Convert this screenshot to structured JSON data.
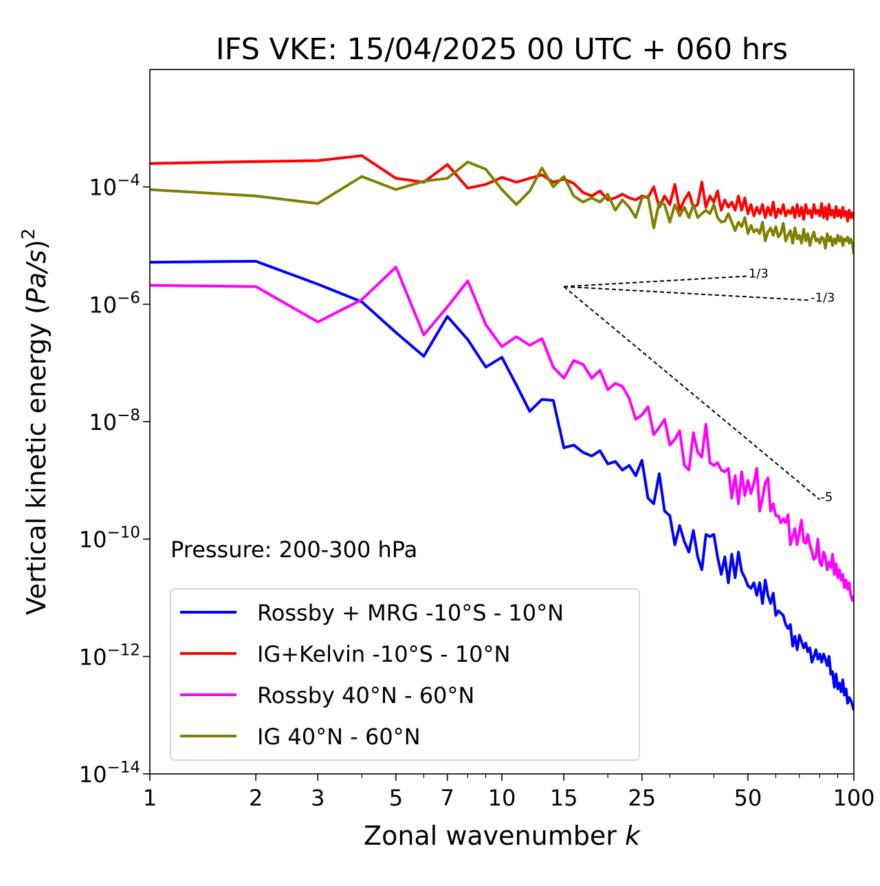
{
  "chart_data": {
    "type": "line",
    "title": "IFS VKE: 15/04/2025 00 UTC + 060 hrs",
    "xlabel": "Zonal wavenumber",
    "xlabel_var": "k",
    "ylabel_main": "Vertical kinetic energy (",
    "ylabel_var": "Pa/s",
    "ylabel_close": ")",
    "ylabel_exp": "2",
    "xscale": "log",
    "yscale": "log",
    "xlim": [
      1,
      100
    ],
    "ylim": [
      1e-14,
      0.01
    ],
    "x_ticks": [
      {
        "value": 1,
        "label": "1"
      },
      {
        "value": 2,
        "label": "2"
      },
      {
        "value": 3,
        "label": "3"
      },
      {
        "value": 5,
        "label": "5"
      },
      {
        "value": 7,
        "label": "7"
      },
      {
        "value": 10,
        "label": "10"
      },
      {
        "value": 15,
        "label": "15"
      },
      {
        "value": 25,
        "label": "25"
      },
      {
        "value": 50,
        "label": "50"
      },
      {
        "value": 100,
        "label": "100"
      }
    ],
    "y_ticks": [
      {
        "exp": -4,
        "base": "10",
        "sup": "−4"
      },
      {
        "exp": -6,
        "base": "10",
        "sup": "−6"
      },
      {
        "exp": -8,
        "base": "10",
        "sup": "−8"
      },
      {
        "exp": -10,
        "base": "10",
        "sup": "−10"
      },
      {
        "exp": -12,
        "base": "10",
        "sup": "−12"
      },
      {
        "exp": -14,
        "base": "10",
        "sup": "−14"
      }
    ],
    "annotation": "Pressure: 200-300 hPa",
    "legend_position": "lower-left",
    "grid": false,
    "series": [
      {
        "name": "Rossby + MRG -10°S - 10°N",
        "color": "#0000ff",
        "x": [
          1,
          2,
          3,
          4,
          5,
          6,
          7,
          8,
          9,
          10,
          11,
          12,
          13,
          14,
          15,
          16,
          17,
          18,
          19,
          20,
          21,
          22,
          23,
          24,
          25,
          26,
          27,
          28,
          29,
          30,
          31,
          32,
          33,
          34,
          35,
          36,
          37,
          38,
          39,
          40,
          41,
          42,
          43,
          44,
          45,
          46,
          47,
          48,
          49,
          50,
          51,
          52,
          53,
          54,
          55,
          56,
          57,
          58,
          59,
          60,
          61,
          62,
          63,
          64,
          65,
          66,
          67,
          68,
          69,
          70,
          71,
          72,
          73,
          74,
          75,
          76,
          77,
          78,
          79,
          80,
          81,
          82,
          83,
          84,
          85,
          86,
          87,
          88,
          89,
          90,
          91,
          92,
          93,
          94,
          95,
          96,
          97,
          98,
          99,
          100
        ],
        "values": [
          5.2e-06,
          5.4e-06,
          2.2e-06,
          1.1e-06,
          3.3e-07,
          1.3e-07,
          6.2e-07,
          2.5e-07,
          8.5e-08,
          1.25e-07,
          4.2e-08,
          1.5e-08,
          2.4e-08,
          2.3e-08,
          3.6e-09,
          4e-09,
          3e-09,
          2.6e-09,
          3.2e-09,
          1.9e-09,
          2.1e-09,
          1.5e-09,
          1.8e-09,
          1.2e-09,
          2.2e-09,
          5e-10,
          4e-10,
          1.3e-09,
          3e-10,
          2.5e-10,
          8e-11,
          1.7e-10,
          9e-11,
          6e-11,
          1.4e-10,
          5e-11,
          3e-11,
          1.2e-10,
          1.1e-10,
          1.2e-10,
          5e-11,
          2.5e-11,
          5e-11,
          1.8e-11,
          5.5e-11,
          2.2e-11,
          6e-11,
          2.8e-11,
          2.2e-11,
          1.6e-11,
          1.45e-11,
          1.8e-11,
          1.1e-11,
          1.8e-11,
          8e-12,
          2e-11,
          1.1e-11,
          8e-12,
          1.2e-11,
          5e-12,
          6e-12,
          5.5e-12,
          5e-12,
          3.5e-12,
          3e-12,
          3.5e-12,
          1.5e-12,
          2.2e-12,
          1.3e-12,
          2.3e-12,
          1.8e-12,
          1.4e-12,
          1.7e-12,
          1.2e-12,
          1.4e-12,
          8e-13,
          1e-12,
          1.3e-12,
          9e-13,
          1.1e-12,
          8e-13,
          1.1e-12,
          9e-13,
          7e-13,
          1e-12,
          5e-13,
          5.5e-13,
          3e-13,
          5e-13,
          2.8e-13,
          3.5e-13,
          2.5e-13,
          4e-13,
          2.2e-13,
          2.8e-13,
          1.6e-13,
          2e-13,
          1.8e-13,
          1.5e-13,
          1.2e-13
        ]
      },
      {
        "name": "IG+Kelvin -10°S - 10°N",
        "color": "#ff0000",
        "x": [
          1,
          2,
          3,
          4,
          5,
          6,
          7,
          8,
          9,
          10,
          11,
          12,
          13,
          14,
          15,
          16,
          17,
          18,
          19,
          20,
          21,
          22,
          23,
          24,
          25,
          26,
          27,
          28,
          29,
          30,
          31,
          32,
          33,
          34,
          35,
          36,
          37,
          38,
          39,
          40,
          41,
          42,
          43,
          44,
          45,
          46,
          47,
          48,
          49,
          50,
          51,
          52,
          53,
          54,
          55,
          56,
          57,
          58,
          59,
          60,
          61,
          62,
          63,
          64,
          65,
          66,
          67,
          68,
          69,
          70,
          71,
          72,
          73,
          74,
          75,
          76,
          77,
          78,
          79,
          80,
          81,
          82,
          83,
          84,
          85,
          86,
          87,
          88,
          89,
          90,
          91,
          92,
          93,
          94,
          95,
          96,
          97,
          98,
          99,
          100
        ],
        "values": [
          0.00025,
          0.00027,
          0.00028,
          0.00034,
          0.00014,
          0.00012,
          0.00024,
          9.5e-05,
          0.00011,
          0.000145,
          0.00012,
          0.00014,
          0.00016,
          0.00012,
          0.000135,
          0.000115,
          8e-05,
          7e-05,
          8.5e-05,
          6e-05,
          6.5e-05,
          7.5e-05,
          6.5e-05,
          6e-05,
          7e-05,
          6.5e-05,
          0.0001,
          4.5e-05,
          7e-05,
          5e-05,
          0.00011,
          4e-05,
          6e-05,
          8e-05,
          4.5e-05,
          5e-05,
          0.00012,
          4.5e-05,
          7e-05,
          5.5e-05,
          8.5e-05,
          4e-05,
          6e-05,
          4.5e-05,
          5.5e-05,
          4e-05,
          7e-05,
          4e-05,
          6.5e-05,
          3.5e-05,
          5e-05,
          3.2e-05,
          4.5e-05,
          3.5e-05,
          5e-05,
          3e-05,
          4.5e-05,
          3.3e-05,
          5.5e-05,
          3e-05,
          4.2e-05,
          3.5e-05,
          5e-05,
          3.2e-05,
          4e-05,
          3.5e-05,
          4.5e-05,
          3e-05,
          5e-05,
          3.2e-05,
          4.5e-05,
          2.8e-05,
          5e-05,
          3.5e-05,
          4e-05,
          3e-05,
          5e-05,
          3.5e-05,
          4e-05,
          3.2e-05,
          5.2e-05,
          3e-05,
          4.5e-05,
          2.8e-05,
          5e-05,
          3.3e-05,
          4e-05,
          3e-05,
          4.6e-05,
          3.2e-05,
          4e-05,
          3e-05,
          4.5e-05,
          3.2e-05,
          3.8e-05,
          2.6e-05,
          4e-05,
          3e-05,
          3.6e-05,
          2.8e-05
        ]
      },
      {
        "name": "Rossby 40°N - 60°N",
        "color": "#ff00ff",
        "x": [
          1,
          2,
          3,
          4,
          5,
          6,
          7,
          8,
          9,
          10,
          11,
          12,
          13,
          14,
          15,
          16,
          17,
          18,
          19,
          20,
          21,
          22,
          23,
          24,
          25,
          26,
          27,
          28,
          29,
          30,
          31,
          32,
          33,
          34,
          35,
          36,
          37,
          38,
          39,
          40,
          41,
          42,
          43,
          44,
          45,
          46,
          47,
          48,
          49,
          50,
          51,
          52,
          53,
          54,
          55,
          56,
          57,
          58,
          59,
          60,
          61,
          62,
          63,
          64,
          65,
          66,
          67,
          68,
          69,
          70,
          71,
          72,
          73,
          74,
          75,
          76,
          77,
          78,
          79,
          80,
          81,
          82,
          83,
          84,
          85,
          86,
          87,
          88,
          89,
          90,
          91,
          92,
          93,
          94,
          95,
          96,
          97,
          98,
          99,
          100
        ],
        "values": [
          2.1e-06,
          2e-06,
          5e-07,
          1.2e-06,
          4.3e-06,
          3e-07,
          9e-07,
          2.5e-06,
          4.5e-07,
          1.9e-07,
          2.8e-07,
          2e-07,
          2.6e-07,
          8.5e-08,
          5.5e-08,
          1.1e-07,
          9.5e-08,
          5.5e-08,
          7.5e-08,
          3.5e-08,
          4.5e-08,
          4e-08,
          2.5e-08,
          1.1e-08,
          1.3e-08,
          1.8e-08,
          6e-09,
          8e-09,
          1.1e-08,
          4e-09,
          5e-09,
          7e-09,
          1.8e-09,
          1.5e-09,
          6.5e-09,
          3e-09,
          2.5e-09,
          9e-09,
          2e-09,
          1.8e-09,
          2e-09,
          1.5e-09,
          1.4e-09,
          1.6e-09,
          5e-10,
          1.2e-09,
          4e-10,
          1.4e-09,
          5.5e-10,
          1e-09,
          6e-10,
          9e-10,
          1.6e-09,
          3e-10,
          5e-10,
          9e-10,
          1.1e-09,
          3e-10,
          4e-10,
          2.5e-10,
          2.5e-10,
          1.9e-10,
          2.2e-10,
          1.9e-10,
          2.6e-10,
          8e-11,
          1.1e-10,
          1.5e-10,
          8e-11,
          1.3e-10,
          2.1e-10,
          9e-11,
          8.5e-11,
          1.2e-10,
          8e-11,
          6e-11,
          4.5e-11,
          5e-11,
          1e-10,
          4e-11,
          3.5e-11,
          6e-11,
          5e-11,
          3e-11,
          4e-11,
          3.3e-11,
          5.5e-11,
          2.5e-11,
          3.8e-11,
          2.2e-11,
          3e-11,
          2e-11,
          2.5e-11,
          1.5e-11,
          2e-11,
          1.4e-11,
          1.8e-11,
          1.1e-11,
          9e-12,
          1.1e-11
        ]
      },
      {
        "name": "IG 40°N - 60°N",
        "color": "#808000",
        "x": [
          1,
          2,
          3,
          4,
          5,
          6,
          7,
          8,
          9,
          10,
          11,
          12,
          13,
          14,
          15,
          16,
          17,
          18,
          19,
          20,
          21,
          22,
          23,
          24,
          25,
          26,
          27,
          28,
          29,
          30,
          31,
          32,
          33,
          34,
          35,
          36,
          37,
          38,
          39,
          40,
          41,
          42,
          43,
          44,
          45,
          46,
          47,
          48,
          49,
          50,
          51,
          52,
          53,
          54,
          55,
          56,
          57,
          58,
          59,
          60,
          61,
          62,
          63,
          64,
          65,
          66,
          67,
          68,
          69,
          70,
          71,
          72,
          73,
          74,
          75,
          76,
          77,
          78,
          79,
          80,
          81,
          82,
          83,
          84,
          85,
          86,
          87,
          88,
          89,
          90,
          91,
          92,
          93,
          94,
          95,
          96,
          97,
          98,
          99,
          100
        ],
        "values": [
          9e-05,
          7e-05,
          5.2e-05,
          0.00015,
          9e-05,
          0.000125,
          0.00014,
          0.000265,
          0.0002,
          9e-05,
          5e-05,
          8.5e-05,
          0.00021,
          0.0001,
          0.00015,
          7e-05,
          5.5e-05,
          6.5e-05,
          5.5e-05,
          7.5e-05,
          4e-05,
          6e-05,
          4.5e-05,
          3e-05,
          6.5e-05,
          7e-05,
          2e-05,
          5.5e-05,
          5e-05,
          2.5e-05,
          5e-05,
          3.2e-05,
          4.5e-05,
          3e-05,
          5e-05,
          3e-05,
          3.5e-05,
          4e-05,
          3.5e-05,
          5e-05,
          3e-05,
          2.5e-05,
          2.6e-05,
          3.5e-05,
          2.5e-05,
          1.8e-05,
          2.5e-05,
          2.1e-05,
          3e-05,
          1.6e-05,
          2.2e-05,
          1.7e-05,
          1.9e-05,
          1.6e-05,
          2.5e-05,
          1.2e-05,
          1.7e-05,
          2e-05,
          1.5e-05,
          2.1e-05,
          1.4e-05,
          1.6e-05,
          2.4e-05,
          1.2e-05,
          1.5e-05,
          1.8e-05,
          1.1e-05,
          2e-05,
          1.3e-05,
          1.5e-05,
          1.1e-05,
          1.9e-05,
          1.2e-05,
          1.6e-05,
          1e-05,
          1.4e-05,
          1.7e-05,
          1.2e-05,
          1.3e-05,
          1.1e-05,
          1.4e-05,
          1.3e-05,
          9e-06,
          1.6e-05,
          1.2e-05,
          1.4e-05,
          1e-05,
          1.3e-05,
          1.1e-05,
          1.5e-05,
          1.2e-05,
          1.4e-05,
          1e-05,
          1.3e-05,
          1.2e-05,
          1.4e-05,
          1.1e-05,
          1.3e-05,
          1.1e-05,
          7e-06
        ]
      }
    ],
    "reference_lines": [
      {
        "label": "1/3",
        "x": [
          15,
          50
        ],
        "y": [
          2e-06,
          3.02e-06
        ]
      },
      {
        "label": "-1/3",
        "x": [
          15,
          75
        ],
        "y": [
          2e-06,
          1.17e-06
        ]
      },
      {
        "label": "-5",
        "x": [
          15,
          80
        ],
        "y": [
          2e-06,
          4.7e-10
        ]
      }
    ]
  }
}
